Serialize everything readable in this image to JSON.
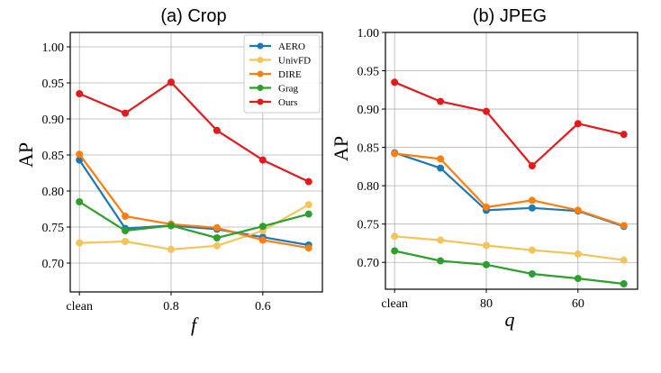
{
  "chart_data": [
    {
      "type": "line",
      "title": "(a) Crop",
      "xlabel": "f",
      "ylabel": "AP",
      "x": [
        0,
        1,
        2,
        3,
        4,
        5
      ],
      "xticks": [
        {
          "x": 0,
          "label": "clean"
        },
        {
          "x": 2,
          "label": "0.8"
        },
        {
          "x": 4,
          "label": "0.6"
        }
      ],
      "yticks": [
        0.7,
        0.75,
        0.8,
        0.85,
        0.9,
        0.95,
        1.0
      ],
      "ytick_labels": [
        "0.70",
        "0.75",
        "0.80",
        "0.85",
        "0.90",
        "0.95",
        "1.00"
      ],
      "ylim": [
        0.66,
        1.02
      ],
      "xlim": [
        -0.2,
        5.3
      ],
      "grid": true,
      "legend": "top-right",
      "series": [
        {
          "name": "AERO",
          "color": "#1f77b4",
          "values": [
            0.843,
            0.748,
            0.752,
            0.747,
            0.736,
            0.725
          ]
        },
        {
          "name": "UnivFD",
          "color": "#f2c45a",
          "values": [
            0.728,
            0.73,
            0.719,
            0.724,
            0.745,
            0.781
          ]
        },
        {
          "name": "DIRE",
          "color": "#ff7f0e",
          "values": [
            0.851,
            0.765,
            0.754,
            0.749,
            0.732,
            0.721
          ]
        },
        {
          "name": "Grag",
          "color": "#2ca02c",
          "values": [
            0.785,
            0.745,
            0.752,
            0.735,
            0.751,
            0.768
          ]
        },
        {
          "name": "Ours",
          "color": "#e31a1c",
          "values": [
            0.935,
            0.908,
            0.951,
            0.884,
            0.843,
            0.813
          ]
        }
      ]
    },
    {
      "type": "line",
      "title": "(b) JPEG",
      "xlabel": "q",
      "ylabel": "AP",
      "x": [
        0,
        1,
        2,
        3,
        4,
        5
      ],
      "xticks": [
        {
          "x": 0,
          "label": "clean"
        },
        {
          "x": 2,
          "label": "80"
        },
        {
          "x": 4,
          "label": "60"
        }
      ],
      "yticks": [
        0.7,
        0.75,
        0.8,
        0.85,
        0.9,
        0.95,
        1.0
      ],
      "ytick_labels": [
        "0.70",
        "0.75",
        "0.80",
        "0.85",
        "0.90",
        "0.95",
        "1.00"
      ],
      "ylim": [
        0.665,
        1.0
      ],
      "xlim": [
        -0.2,
        5.3
      ],
      "grid": true,
      "legend": "none",
      "series": [
        {
          "name": "AERO",
          "color": "#1f77b4",
          "values": [
            0.843,
            0.823,
            0.768,
            0.771,
            0.767,
            0.747
          ]
        },
        {
          "name": "UnivFD",
          "color": "#f2c45a",
          "values": [
            0.734,
            0.729,
            0.722,
            0.716,
            0.711,
            0.703
          ]
        },
        {
          "name": "DIRE",
          "color": "#ff7f0e",
          "values": [
            0.842,
            0.835,
            0.772,
            0.781,
            0.768,
            0.748
          ]
        },
        {
          "name": "Grag",
          "color": "#2ca02c",
          "values": [
            0.715,
            0.702,
            0.697,
            0.685,
            0.679,
            0.672
          ]
        },
        {
          "name": "Ours",
          "color": "#e31a1c",
          "values": [
            0.935,
            0.91,
            0.897,
            0.826,
            0.881,
            0.867
          ]
        }
      ]
    }
  ]
}
